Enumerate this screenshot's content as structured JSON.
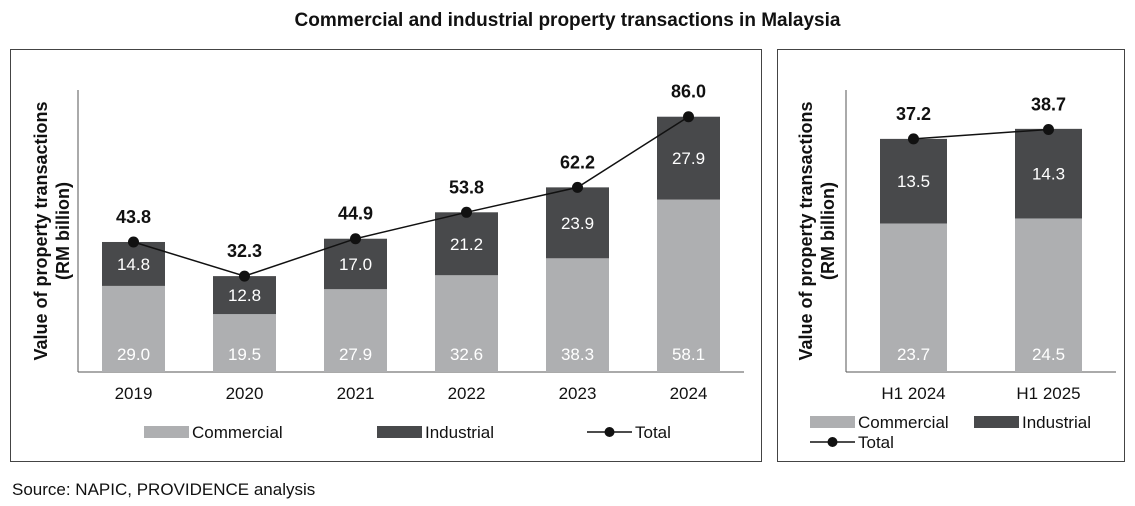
{
  "title": "Commercial and industrial property transactions in Malaysia",
  "source": "Source: NAPIC, PROVIDENCE analysis",
  "colors": {
    "commercial": "#aeafb1",
    "industrial": "#48494b",
    "total": "#111111"
  },
  "chart_data": [
    {
      "type": "bar",
      "stacked": true,
      "categories": [
        "2019",
        "2020",
        "2021",
        "2022",
        "2023",
        "2024"
      ],
      "series": [
        {
          "name": "Commercial",
          "values": [
            29.0,
            19.5,
            27.9,
            32.6,
            38.3,
            58.1
          ]
        },
        {
          "name": "Industrial",
          "values": [
            14.8,
            12.8,
            17.0,
            21.2,
            23.9,
            27.9
          ]
        },
        {
          "name": "Total",
          "type": "line",
          "values": [
            43.8,
            32.3,
            44.9,
            53.8,
            62.2,
            86.0
          ]
        }
      ],
      "ylabel_lines": [
        "Value of property transactions",
        "(RM billion)"
      ],
      "ylim": [
        0,
        95
      ],
      "legend": [
        "Commercial",
        "Industrial",
        "Total"
      ]
    },
    {
      "type": "bar",
      "stacked": true,
      "categories": [
        "H1 2024",
        "H1 2025"
      ],
      "series": [
        {
          "name": "Commercial",
          "values": [
            23.7,
            24.5
          ]
        },
        {
          "name": "Industrial",
          "values": [
            13.5,
            14.3
          ]
        },
        {
          "name": "Total",
          "type": "line",
          "values": [
            37.2,
            38.7
          ]
        }
      ],
      "ylabel_lines": [
        "Value of property transactions",
        "(RM billion)"
      ],
      "ylim": [
        0,
        45
      ],
      "legend": [
        "Commercial",
        "Industrial",
        "Total"
      ]
    }
  ]
}
